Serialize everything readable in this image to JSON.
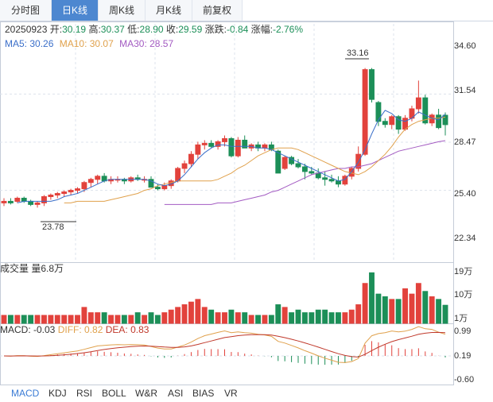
{
  "tabs": [
    {
      "label": "分时图",
      "active": false
    },
    {
      "label": "日K线",
      "active": true
    },
    {
      "label": "周K线",
      "active": false
    },
    {
      "label": "月K线",
      "active": false
    },
    {
      "label": "前复权",
      "active": false
    }
  ],
  "quote": {
    "date": "20250923",
    "open_label": "开:",
    "open": "30.19",
    "high_label": "高:",
    "high": "30.37",
    "low_label": "低:",
    "low": "28.90",
    "close_label": "收:",
    "close": "29.59",
    "change_label": "涨跌:",
    "change": "-0.84",
    "pct_label": "涨幅:",
    "pct": "-2.76%"
  },
  "ma": {
    "ma5": "MA5: 30.26",
    "ma10": "MA10: 30.07",
    "ma30": "MA30: 28.57",
    "colors": {
      "ma5": "#3b6fc9",
      "ma10": "#e0a14c",
      "ma30": "#a35bc2"
    }
  },
  "colors": {
    "up": "#e2423c",
    "down": "#1c8f58",
    "grid": "#dde3ec"
  },
  "price_axis": [
    "34.60",
    "31.54",
    "28.47",
    "25.40",
    "22.34"
  ],
  "annotations": {
    "max": "33.16",
    "min": "23.78"
  },
  "volume": {
    "title": "成交量",
    "amount": "量6.8万",
    "axis": [
      "19万",
      "10万",
      "1万"
    ]
  },
  "macd": {
    "macd": "MACD: -0.03",
    "diff": "DIFF: 0.82",
    "dea": "DEA: 0.83",
    "axis": [
      "0.99",
      "0.19",
      "-0.60"
    ],
    "colors": {
      "diff": "#e0a14c",
      "dea": "#c0392b"
    }
  },
  "indicator_tabs": [
    "MACD",
    "KDJ",
    "RSI",
    "BOLL",
    "W&R",
    "ASI",
    "BIAS",
    "VR"
  ],
  "chart_data": {
    "type": "candlestick",
    "price_range": [
      22.34,
      34.6
    ],
    "candles": [
      [
        24.6,
        24.9,
        24.4,
        24.7
      ],
      [
        24.7,
        24.9,
        24.5,
        24.6
      ],
      [
        24.7,
        25.0,
        24.6,
        24.9
      ],
      [
        24.9,
        25.0,
        24.6,
        24.7
      ],
      [
        24.7,
        24.8,
        24.4,
        24.5
      ],
      [
        24.5,
        24.7,
        24.3,
        24.6
      ],
      [
        24.6,
        25.1,
        24.4,
        25.0
      ],
      [
        25.0,
        25.2,
        24.8,
        25.1
      ],
      [
        25.1,
        25.3,
        24.9,
        25.2
      ],
      [
        25.2,
        25.4,
        25.0,
        25.3
      ],
      [
        25.3,
        25.5,
        25.1,
        25.4
      ],
      [
        25.4,
        25.6,
        25.2,
        25.5
      ],
      [
        25.5,
        26.0,
        25.3,
        25.9
      ],
      [
        25.9,
        26.2,
        25.6,
        26.1
      ],
      [
        26.1,
        26.4,
        25.8,
        26.3
      ],
      [
        26.3,
        26.5,
        25.9,
        26.0
      ],
      [
        26.0,
        26.3,
        25.8,
        26.1
      ],
      [
        26.1,
        26.3,
        25.9,
        26.1
      ],
      [
        26.1,
        26.2,
        25.8,
        26.0
      ],
      [
        26.0,
        26.3,
        25.9,
        26.2
      ],
      [
        26.2,
        26.4,
        26.0,
        26.1
      ],
      [
        26.1,
        26.3,
        25.9,
        26.1
      ],
      [
        26.1,
        26.3,
        25.6,
        25.6
      ],
      [
        25.6,
        25.8,
        25.4,
        25.5
      ],
      [
        25.5,
        25.9,
        25.4,
        25.7
      ],
      [
        25.7,
        26.1,
        25.5,
        26.0
      ],
      [
        26.0,
        26.9,
        25.9,
        26.8
      ],
      [
        26.8,
        27.3,
        26.5,
        27.1
      ],
      [
        27.1,
        27.9,
        26.9,
        27.7
      ],
      [
        27.7,
        28.5,
        27.4,
        28.3
      ],
      [
        28.3,
        28.6,
        28.0,
        28.4
      ],
      [
        28.4,
        28.6,
        28.1,
        28.2
      ],
      [
        28.2,
        28.6,
        28.0,
        28.5
      ],
      [
        28.5,
        28.9,
        28.2,
        28.7
      ],
      [
        28.7,
        28.8,
        27.5,
        27.6
      ],
      [
        27.6,
        28.8,
        27.5,
        28.6
      ],
      [
        28.6,
        28.9,
        28.1,
        28.1
      ],
      [
        28.1,
        28.4,
        27.9,
        28.3
      ],
      [
        28.3,
        28.5,
        27.9,
        28.1
      ],
      [
        28.1,
        28.4,
        27.9,
        28.3
      ],
      [
        28.3,
        28.5,
        27.9,
        28.0
      ],
      [
        27.9,
        28.0,
        26.5,
        26.5
      ],
      [
        26.8,
        27.6,
        26.7,
        27.5
      ],
      [
        27.5,
        27.6,
        27.0,
        27.1
      ],
      [
        27.1,
        27.4,
        26.8,
        26.9
      ],
      [
        26.9,
        27.1,
        26.1,
        26.6
      ],
      [
        26.6,
        26.9,
        26.4,
        26.5
      ],
      [
        26.5,
        26.8,
        26.1,
        26.2
      ],
      [
        26.2,
        26.6,
        25.7,
        26.1
      ],
      [
        26.1,
        26.4,
        25.9,
        26.0
      ],
      [
        26.0,
        26.3,
        25.6,
        25.8
      ],
      [
        25.8,
        26.4,
        25.7,
        26.3
      ],
      [
        26.3,
        26.9,
        26.1,
        26.8
      ],
      [
        26.8,
        28.2,
        26.6,
        27.7
      ],
      [
        27.7,
        33.2,
        27.6,
        33.1
      ],
      [
        33.1,
        33.2,
        31.0,
        31.2
      ],
      [
        31.0,
        31.1,
        29.5,
        29.8
      ],
      [
        29.8,
        30.0,
        29.4,
        29.6
      ],
      [
        29.6,
        30.2,
        29.3,
        30.1
      ],
      [
        30.1,
        30.2,
        29.0,
        29.3
      ],
      [
        29.3,
        30.2,
        29.2,
        30.0
      ],
      [
        30.0,
        30.8,
        29.8,
        30.6
      ],
      [
        30.6,
        32.4,
        30.3,
        31.3
      ],
      [
        31.3,
        31.5,
        29.6,
        29.7
      ],
      [
        29.7,
        30.3,
        29.5,
        30.2
      ],
      [
        30.2,
        30.6,
        29.3,
        29.4
      ],
      [
        30.19,
        30.37,
        28.9,
        29.59
      ]
    ],
    "volume": [
      3,
      3,
      3,
      3,
      3,
      3,
      3,
      3,
      3,
      3,
      3,
      3,
      6,
      4,
      4,
      4,
      3,
      3,
      3,
      3,
      4,
      3,
      4,
      3,
      4,
      5,
      6,
      7,
      8,
      9,
      6,
      5,
      4,
      4,
      5,
      4,
      4,
      3,
      3,
      3,
      3,
      7,
      6,
      4,
      5,
      4,
      4,
      5,
      5,
      4,
      4,
      4,
      5,
      7,
      15,
      19,
      11,
      10,
      9,
      9,
      13,
      11,
      15,
      12,
      10,
      9,
      6.8
    ],
    "ma5": [
      24.6,
      24.7,
      24.7,
      24.7,
      24.7,
      24.7,
      24.8,
      25.0,
      25.1,
      25.2,
      25.4,
      25.6,
      25.8,
      26.0,
      26.1,
      26.1,
      26.1,
      26.1,
      26.1,
      26.1,
      26.0,
      25.8,
      25.7,
      25.8,
      26.0,
      26.4,
      26.9,
      27.4,
      27.8,
      28.1,
      28.3,
      28.3,
      28.2,
      28.2,
      28.2,
      28.2,
      28.1,
      28.1,
      28.0,
      27.8,
      27.6,
      27.4,
      27.2,
      27.0,
      26.8,
      26.6,
      26.4,
      26.2,
      26.0,
      26.1,
      26.6,
      27.2,
      28.0,
      29.0,
      29.9,
      30.5,
      30.3,
      29.9,
      29.8,
      30.0,
      30.4,
      30.2,
      30.0,
      29.9,
      30.26
    ],
    "ma10": [
      24.6,
      24.6,
      24.7,
      24.7,
      24.7,
      24.7,
      24.7,
      24.8,
      24.9,
      25.0,
      25.1,
      25.2,
      25.4,
      25.5,
      25.7,
      25.8,
      25.9,
      26.0,
      26.0,
      26.0,
      26.0,
      26.0,
      26.0,
      26.1,
      26.3,
      26.5,
      26.8,
      27.0,
      27.3,
      27.6,
      27.8,
      28.0,
      28.1,
      28.1,
      28.1,
      28.0,
      27.8,
      27.6,
      27.4,
      27.2,
      27.0,
      26.8,
      26.6,
      26.5,
      26.4,
      26.6,
      26.9,
      27.3,
      27.7,
      28.2,
      28.8,
      29.3,
      29.6,
      29.8,
      29.9,
      30.0,
      30.0,
      30.07
    ],
    "ma30": [
      24.5,
      24.5,
      24.5,
      24.5,
      24.5,
      24.5,
      24.5,
      24.5,
      24.6,
      24.6,
      24.6,
      24.7,
      24.8,
      24.9,
      25.0,
      25.1,
      25.3,
      25.4,
      25.6,
      25.8,
      26.0,
      26.2,
      26.4,
      26.5,
      26.6,
      26.7,
      26.8,
      26.8,
      26.9,
      26.9,
      27.0,
      27.1,
      27.3,
      27.5,
      27.7,
      27.9,
      28.0,
      28.1,
      28.2,
      28.3,
      28.4,
      28.5,
      28.57
    ]
  }
}
